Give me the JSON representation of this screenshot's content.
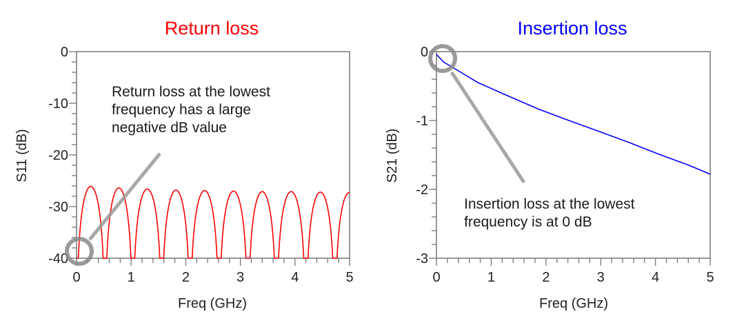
{
  "chart_data": [
    {
      "type": "line",
      "title": "Return loss",
      "title_color": "#ff0000",
      "xlabel": "Freq (GHz)",
      "ylabel": "S11 (dB)",
      "xlim": [
        0,
        5
      ],
      "ylim": [
        -40,
        0
      ],
      "xticks": [
        "0",
        "1",
        "2",
        "3",
        "4",
        "5"
      ],
      "yticks": [
        "0",
        "-10",
        "-20",
        "-30",
        "-40"
      ],
      "grid": false,
      "series": [
        {
          "color": "#ff0000",
          "nulls_x": [
            0,
            0.52,
            1.03,
            1.56,
            2.08,
            2.61,
            3.14,
            3.66,
            4.2,
            4.73,
            5.26
          ],
          "peaks_y": [
            -26.1,
            -26.4,
            -26.6,
            -26.8,
            -26.9,
            -27.0,
            -27.1,
            -27.1,
            -27.2,
            -27.3
          ]
        }
      ],
      "annotation": {
        "lines": [
          "Return loss at the lowest",
          "frequency has a large",
          "negative dB value"
        ],
        "marker_x": 0,
        "marker_y": -40
      }
    },
    {
      "type": "line",
      "title": "Insertion loss",
      "title_color": "#0000ff",
      "xlabel": "Freq (GHz)",
      "ylabel": "S21 (dB)",
      "xlim": [
        0,
        5
      ],
      "ylim": [
        -3,
        0
      ],
      "xticks": [
        "0",
        "1",
        "2",
        "3",
        "4",
        "5"
      ],
      "yticks": [
        "0",
        "-1",
        "-2",
        "-3"
      ],
      "grid": false,
      "series": [
        {
          "color": "#0000ff",
          "x": [
            0,
            0.13,
            0.34,
            0.76,
            1.27,
            1.85,
            2.35,
            2.94,
            3.52,
            4.03,
            4.61,
            5.0
          ],
          "y": [
            -0.04,
            -0.15,
            -0.25,
            -0.45,
            -0.63,
            -0.83,
            -0.98,
            -1.15,
            -1.32,
            -1.48,
            -1.65,
            -1.78
          ]
        }
      ],
      "annotation": {
        "lines": [
          "Insertion loss at the lowest",
          "frequency is at 0 dB"
        ],
        "marker_x": 0,
        "marker_y": 0
      }
    }
  ]
}
